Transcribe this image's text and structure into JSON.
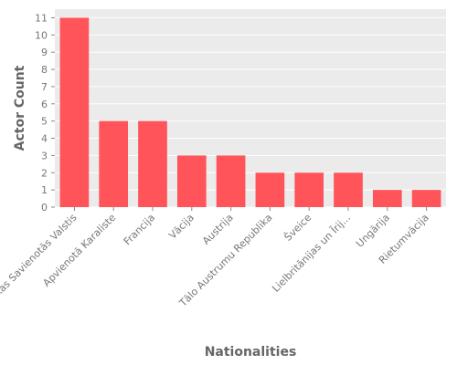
{
  "chart_data": {
    "type": "bar",
    "xlabel": "Nationalities",
    "ylabel": "Actor Count",
    "categories": [
      "Amerikas Savienotās Valstis",
      "Apvienotā Karaliste",
      "Francija",
      "Vācija",
      "Austrija",
      "Tālo Austrumu Republika",
      "Šveice",
      "Lielbritānijas un Īrij...",
      "Ungārija",
      "Rietumvācija"
    ],
    "values": [
      11,
      5,
      5,
      3,
      3,
      2,
      2,
      2,
      1,
      1
    ],
    "ylim": [
      0,
      11.5
    ],
    "yticks": [
      0,
      1,
      2,
      3,
      4,
      5,
      6,
      7,
      8,
      9,
      10,
      11
    ],
    "grid": true,
    "bar_color": "#ff5459",
    "panel_color": "#ebebeb"
  }
}
